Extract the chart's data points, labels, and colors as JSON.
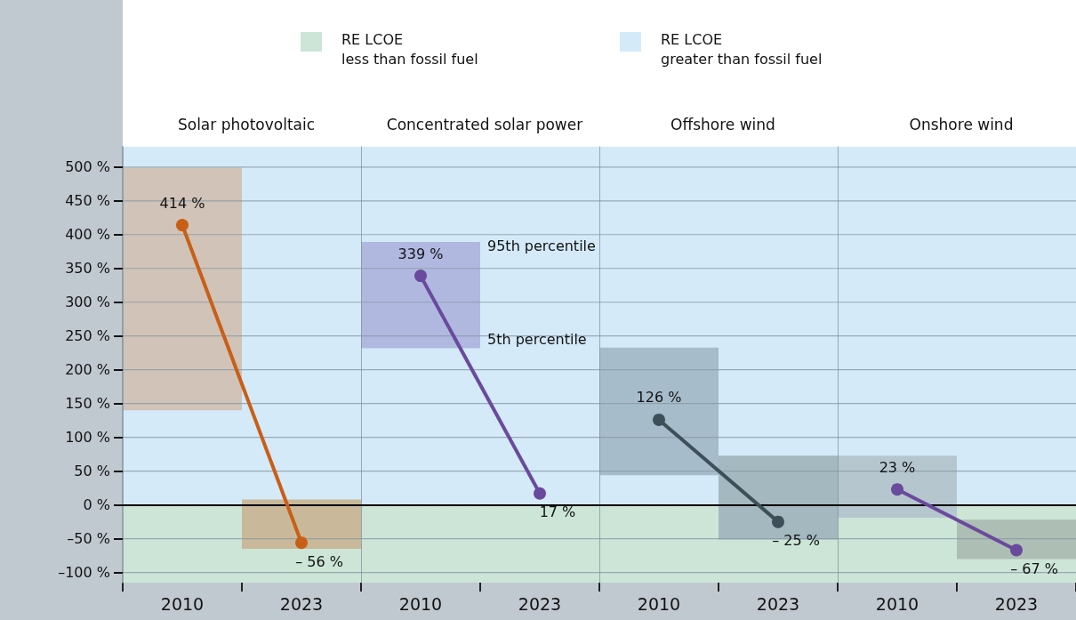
{
  "chart_data": [
    {
      "type": "bar",
      "title": "Solar photovoltaic",
      "categories": [
        "2010",
        "2023"
      ],
      "legend": "top",
      "series": [
        {
          "colors": [
            "#d1c3b8",
            "#c9b99a"
          ],
          "base": [
            140,
            -65
          ],
          "values": [
            359,
            73
          ]
        },
        {
          "type": "line",
          "color": "#c95f17",
          "values": [
            414,
            -56
          ],
          "value_labels": [
            "414 %",
            "– 56 %"
          ]
        }
      ],
      "ylim": [
        -115,
        530
      ],
      "yticks": [
        {
          "value": -100,
          "label": "–100 %"
        },
        {
          "value": -50,
          "label": "–50 %"
        },
        {
          "value": 0,
          "label": "0 %"
        },
        {
          "value": 50,
          "label": "50 %"
        },
        {
          "value": 100,
          "label": "100 %"
        },
        {
          "value": 150,
          "label": "150 %"
        },
        {
          "value": 200,
          "label": "200 %"
        },
        {
          "value": 250,
          "label": "250 %"
        },
        {
          "value": 300,
          "label": "300 %"
        },
        {
          "value": 350,
          "label": "350 %"
        },
        {
          "value": 400,
          "label": "400 %"
        },
        {
          "value": 450,
          "label": "450 %"
        },
        {
          "value": 500,
          "label": "500 %"
        }
      ],
      "grid": "y",
      "marker": "circle",
      "line_style": "solid",
      "bands": [
        {
          "axis": "y",
          "from": -115,
          "to": 0,
          "color": "#cce5d7",
          "label": "RE LCOE\nless than fossil fuel"
        },
        {
          "axis": "y",
          "from": 0,
          "to": 530,
          "color": "#d4eaf9",
          "label": "RE LCOE\ngreater than fossil fuel"
        }
      ],
      "ref_lines": [
        {
          "axis": "y",
          "value": 0,
          "color": "#000000"
        }
      ]
    },
    {
      "type": "bar",
      "title": "Concentrated solar power",
      "categories": [
        "2010",
        "2023"
      ],
      "tick_labels": "x",
      "series": [
        {
          "colors": [
            "#b0b8e0",
            null
          ],
          "base": [
            232,
            null
          ],
          "values": [
            157,
            null
          ]
        },
        {
          "type": "line",
          "color": "#6a4a9c",
          "values": [
            339,
            17
          ],
          "value_labels": [
            "339 %",
            "17 %"
          ]
        }
      ],
      "ylim": [
        -115,
        530
      ],
      "yticks": [
        -100,
        -50,
        0,
        50,
        100,
        150,
        200,
        250,
        300,
        350,
        400,
        450,
        500
      ],
      "grid": "y",
      "marker": "circle",
      "line_style": "solid",
      "annotations": [
        "95th percentile",
        "5th percentile"
      ],
      "bands": [
        {
          "axis": "y",
          "from": -115,
          "to": 0,
          "color": "#cce5d7"
        },
        {
          "axis": "y",
          "from": 0,
          "to": 530,
          "color": "#d4eaf9"
        }
      ],
      "ref_lines": [
        {
          "axis": "y",
          "value": 0,
          "color": "#000000"
        }
      ]
    },
    {
      "type": "bar",
      "title": "Offshore wind",
      "categories": [
        "2010",
        "2023"
      ],
      "tick_labels": "x",
      "series": [
        {
          "colors": [
            "#a7bccb",
            "#a4b8bf"
          ],
          "base": [
            44,
            -51
          ],
          "values": [
            189,
            124
          ]
        },
        {
          "type": "line",
          "color": "#3d4f58",
          "values": [
            126,
            -25
          ],
          "value_labels": [
            "126 %",
            "– 25 %"
          ]
        }
      ],
      "ylim": [
        -115,
        530
      ],
      "yticks": [
        -100,
        -50,
        0,
        50,
        100,
        150,
        200,
        250,
        300,
        350,
        400,
        450,
        500
      ],
      "grid": "y",
      "marker": "circle",
      "line_style": "solid",
      "bands": [
        {
          "axis": "y",
          "from": -115,
          "to": 0,
          "color": "#cce5d7"
        },
        {
          "axis": "y",
          "from": 0,
          "to": 530,
          "color": "#d4eaf9"
        }
      ],
      "ref_lines": [
        {
          "axis": "y",
          "value": 0,
          "color": "#000000"
        }
      ]
    },
    {
      "type": "bar",
      "title": "Onshore wind",
      "categories": [
        "2010",
        "2023"
      ],
      "tick_labels": "x",
      "series": [
        {
          "colors": [
            "#b5c6cf",
            "#adbfb4"
          ],
          "base": [
            -19,
            -80
          ],
          "values": [
            92,
            58
          ]
        },
        {
          "type": "line",
          "color": "#6a4a9c",
          "values": [
            23,
            -67
          ],
          "value_labels": [
            "23 %",
            "– 67 %"
          ]
        }
      ],
      "ylim": [
        -115,
        530
      ],
      "yticks": [
        -100,
        -50,
        0,
        50,
        100,
        150,
        200,
        250,
        300,
        350,
        400,
        450,
        500
      ],
      "grid": "y",
      "marker": "circle",
      "line_style": "solid",
      "bands": [
        {
          "axis": "y",
          "from": -115,
          "to": 0,
          "color": "#cce5d7"
        },
        {
          "axis": "y",
          "from": 0,
          "to": 530,
          "color": "#d4eaf9"
        }
      ],
      "ref_lines": [
        {
          "axis": "y",
          "value": 0,
          "color": "#000000"
        }
      ]
    }
  ]
}
